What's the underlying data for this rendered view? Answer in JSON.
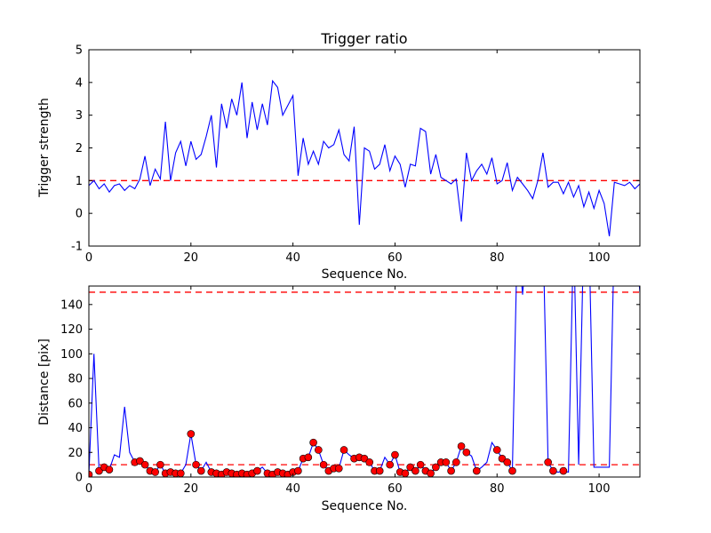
{
  "figure": {
    "background": "#ffffff",
    "line_color": "#0000ff",
    "threshold_color": "#ff0000",
    "marker_face_color": "#ff0000",
    "marker_edge_color": "#000000",
    "frame_color": "#000000"
  },
  "chart_data": [
    {
      "type": "line",
      "title": "Trigger ratio",
      "xlabel": "Sequence No.",
      "ylabel": "Trigger strength",
      "xlim": [
        0,
        108
      ],
      "ylim": [
        -1,
        5
      ],
      "xticks": [
        0,
        20,
        40,
        60,
        80,
        100
      ],
      "yticks": [
        -1,
        0,
        1,
        2,
        3,
        4,
        5
      ],
      "grid": false,
      "legend": "none",
      "thresholds": [
        1.0
      ],
      "series": [
        {
          "name": "trigger-strength",
          "y": [
            0.85,
            1.0,
            0.75,
            0.9,
            0.65,
            0.85,
            0.9,
            0.7,
            0.85,
            0.75,
            1.05,
            1.75,
            0.85,
            1.35,
            1.05,
            2.8,
            1.0,
            1.85,
            2.2,
            1.45,
            2.2,
            1.65,
            1.8,
            2.35,
            3.0,
            1.4,
            3.35,
            2.6,
            3.5,
            3.0,
            4.0,
            2.3,
            3.4,
            2.55,
            3.35,
            2.7,
            4.05,
            3.85,
            3.0,
            3.3,
            3.6,
            1.15,
            2.3,
            1.5,
            1.9,
            1.5,
            2.2,
            2.0,
            2.1,
            2.55,
            1.8,
            1.6,
            2.65,
            -0.35,
            2.0,
            1.9,
            1.35,
            1.5,
            2.1,
            1.3,
            1.75,
            1.5,
            0.8,
            1.5,
            1.45,
            2.6,
            2.5,
            1.2,
            1.8,
            1.1,
            1.0,
            0.9,
            1.05,
            -0.25,
            1.85,
            1.0,
            1.3,
            1.5,
            1.2,
            1.7,
            0.9,
            1.0,
            1.55,
            0.7,
            1.1,
            0.9,
            0.7,
            0.45,
            1.0,
            1.85,
            0.8,
            0.95,
            0.95,
            0.6,
            0.95,
            0.5,
            0.85,
            0.2,
            0.65,
            0.15,
            0.7,
            0.3,
            -0.7,
            0.95,
            0.9,
            0.85,
            0.95,
            0.75,
            0.9
          ]
        }
      ]
    },
    {
      "type": "line",
      "title": "",
      "xlabel": "Sequence No.",
      "ylabel": "Distance [pix]",
      "xlim": [
        0,
        108
      ],
      "ylim": [
        0,
        155
      ],
      "xticks": [
        0,
        20,
        40,
        60,
        80,
        100
      ],
      "yticks": [
        0,
        20,
        40,
        60,
        80,
        100,
        120,
        140
      ],
      "grid": false,
      "legend": "none",
      "thresholds": [
        10,
        150
      ],
      "series": [
        {
          "name": "distance",
          "y": [
            2,
            100,
            5,
            8,
            6,
            18,
            16,
            57,
            20,
            12,
            13,
            10,
            5,
            4,
            10,
            3,
            4,
            3,
            3,
            10,
            35,
            10,
            5,
            12,
            4,
            3,
            2,
            4,
            3,
            2,
            3,
            2,
            3,
            5,
            8,
            3,
            2,
            4,
            3,
            2,
            4,
            5,
            15,
            16,
            28,
            22,
            10,
            5,
            7,
            7,
            22,
            18,
            15,
            16,
            15,
            12,
            5,
            5,
            16,
            10,
            18,
            4,
            3,
            8,
            5,
            10,
            5,
            3,
            8,
            12,
            12,
            5,
            12,
            25,
            20,
            17,
            5,
            8,
            12,
            28,
            22,
            15,
            12,
            5,
            200,
            148,
            200,
            200,
            200,
            200,
            12,
            5,
            4,
            5,
            4,
            200,
            10,
            200,
            200,
            8,
            8,
            8,
            8,
            200,
            200,
            200,
            200,
            200,
            150
          ]
        }
      ],
      "marker_indices": [
        0,
        2,
        3,
        4,
        9,
        10,
        11,
        12,
        13,
        14,
        15,
        16,
        17,
        18,
        20,
        21,
        22,
        24,
        25,
        26,
        27,
        28,
        29,
        30,
        31,
        32,
        33,
        35,
        36,
        37,
        38,
        39,
        40,
        41,
        42,
        43,
        44,
        45,
        46,
        47,
        48,
        49,
        50,
        52,
        53,
        54,
        55,
        56,
        57,
        59,
        60,
        61,
        62,
        63,
        64,
        65,
        66,
        67,
        68,
        69,
        70,
        71,
        72,
        73,
        74,
        76,
        80,
        81,
        82,
        83,
        90,
        91,
        93
      ]
    }
  ]
}
